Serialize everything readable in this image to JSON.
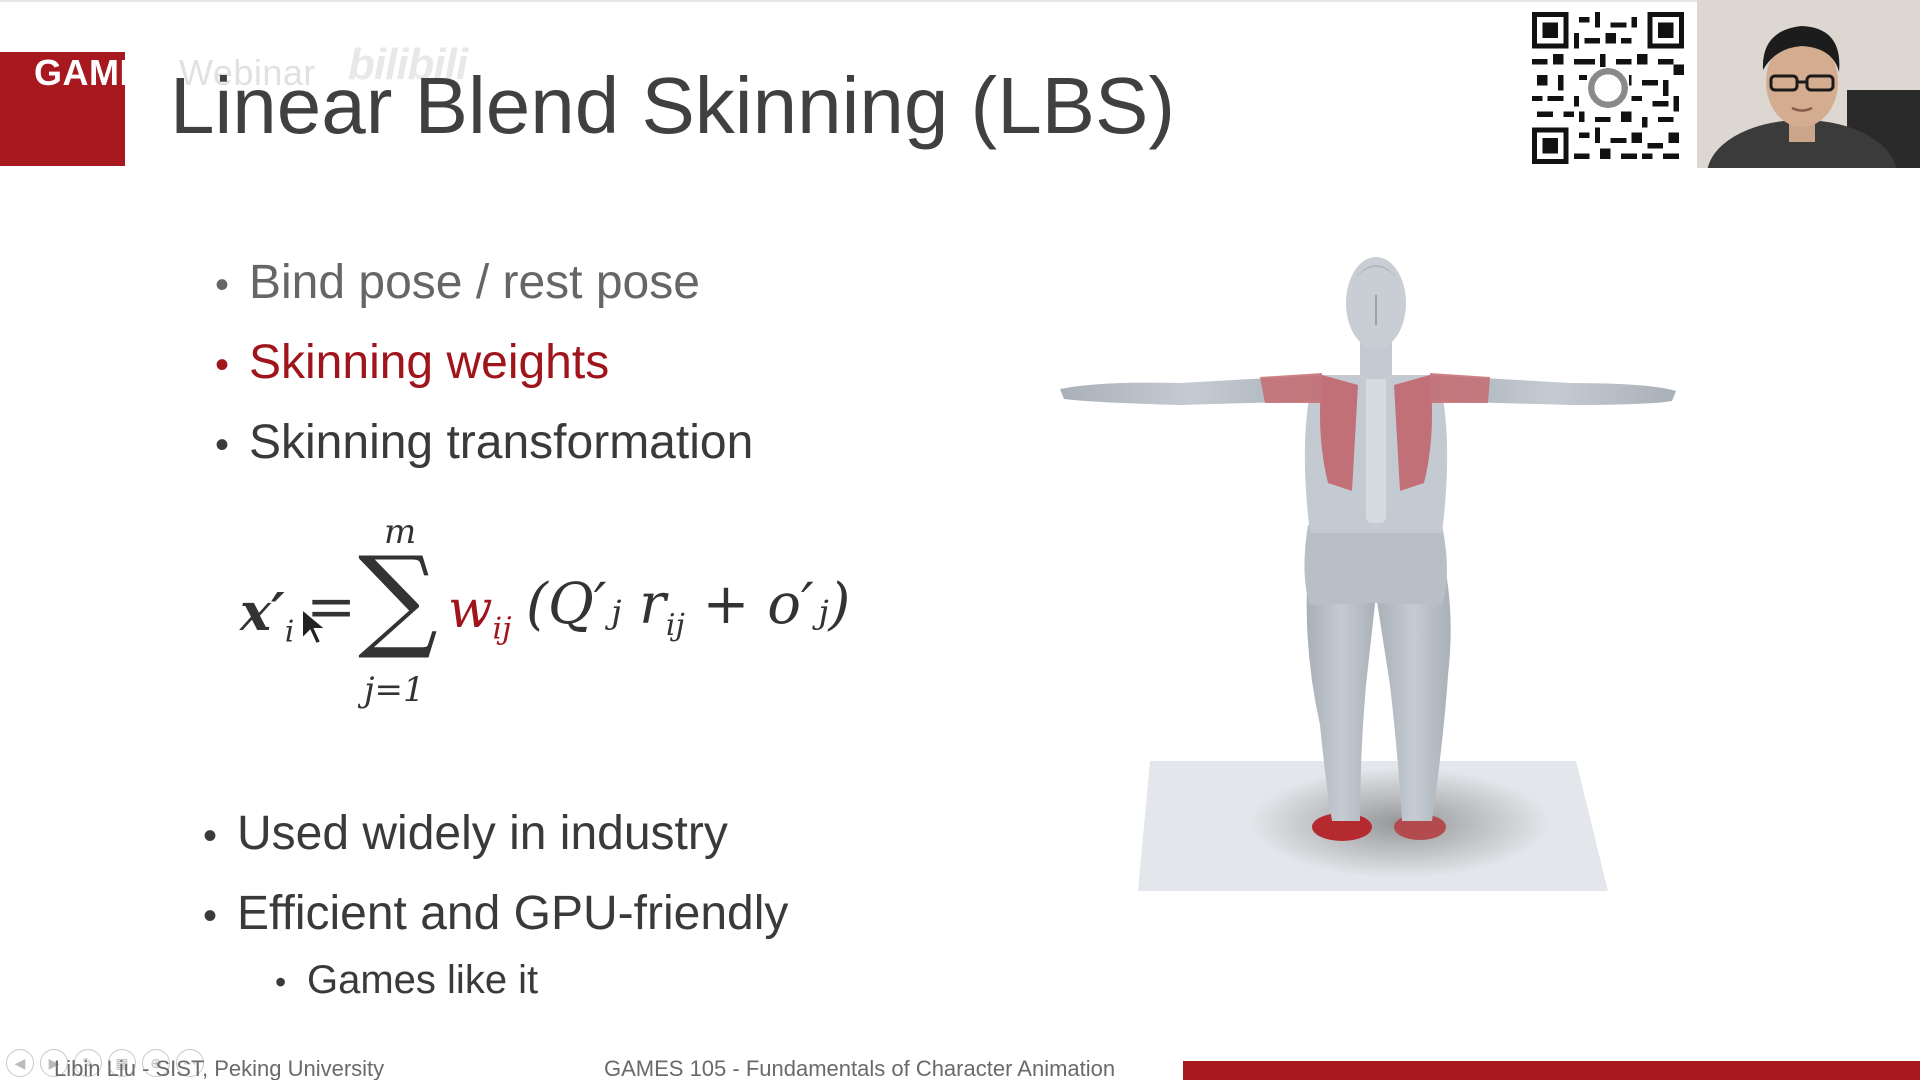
{
  "watermark": {
    "org": "GAMES",
    "org_rest": " Webinar",
    "bili": "bilibili"
  },
  "slide": {
    "title": "Linear Blend Skinning (LBS)",
    "bullets_top": [
      {
        "text": "Bind pose / rest pose",
        "color": "#666666"
      },
      {
        "text": "Skinning weights",
        "color": "#a0141c"
      },
      {
        "text": "Skinning transformation",
        "color": "#3a3a3a"
      }
    ],
    "formula": {
      "lhs": "x",
      "lhs_prime": "′",
      "lhs_sub": "i",
      "equals": "=",
      "sum_symbol": "∑",
      "sum_upper": "m",
      "sum_lower": "j=1",
      "weight": "w",
      "weight_sub": "ij",
      "rest": "(Q′ⱼ r",
      "rest_sub": "ij",
      "rest_tail": " + o′ⱼ)"
    },
    "bullets_bottom": [
      {
        "text": "Used widely in industry"
      },
      {
        "text": "Efficient and GPU-friendly"
      },
      {
        "text": "Games like it",
        "level": 2
      }
    ]
  },
  "footer": {
    "left": "Libin Liu - SIST, Peking University",
    "center": "GAMES 105 - Fundamentals of Character Animation",
    "bar_color": "#a7181f"
  },
  "controls": [
    "back-icon",
    "forward-icon",
    "pen-icon",
    "grid-icon",
    "zoom-icon",
    "more-icon"
  ],
  "colors": {
    "accent": "#a7181f",
    "text": "#3a3a3a",
    "highlight": "#a0141c"
  }
}
